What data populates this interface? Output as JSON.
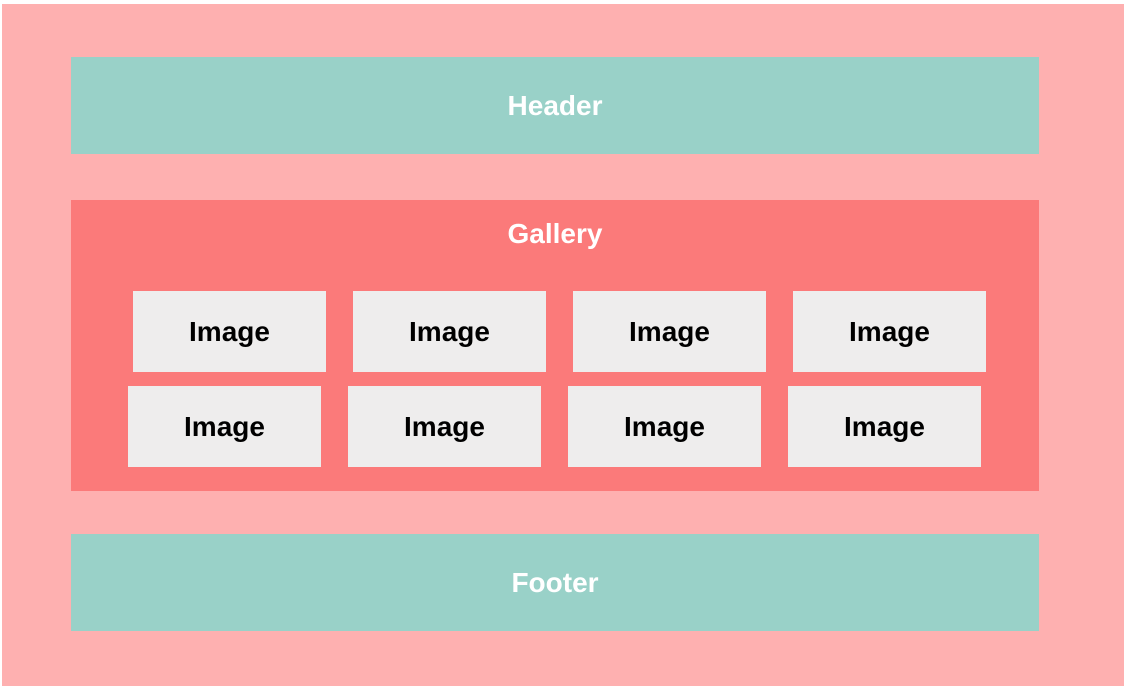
{
  "header": {
    "label": "Header"
  },
  "gallery": {
    "title": "Gallery",
    "images": [
      "Image",
      "Image",
      "Image",
      "Image",
      "Image",
      "Image",
      "Image",
      "Image"
    ]
  },
  "footer": {
    "label": "Footer"
  },
  "colors": {
    "page_background": "#feb0b0",
    "header_footer": "#99d1c8",
    "gallery": "#fb7a7a",
    "image_tile": "#eeeded"
  }
}
